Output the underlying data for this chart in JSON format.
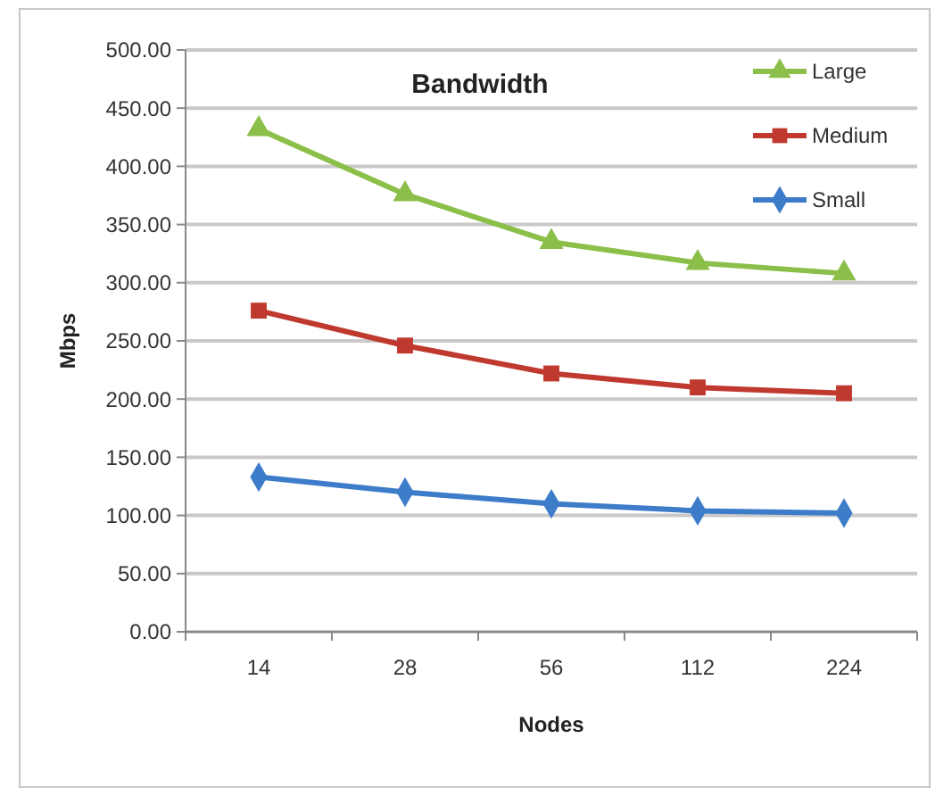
{
  "chart_data": {
    "type": "line",
    "title": "Bandwidth",
    "xlabel": "Nodes",
    "ylabel": "Mbps",
    "categories": [
      "14",
      "28",
      "56",
      "112",
      "224"
    ],
    "series": [
      {
        "name": "Large",
        "color": "#8cbf4a",
        "marker": "triangle",
        "values": [
          432,
          376,
          335,
          317,
          308
        ]
      },
      {
        "name": "Medium",
        "color": "#c0392f",
        "marker": "square",
        "values": [
          276,
          246,
          222,
          210,
          205
        ]
      },
      {
        "name": "Small",
        "color": "#3d7cc9",
        "marker": "diamond",
        "values": [
          133,
          120,
          110,
          104,
          102
        ]
      }
    ],
    "ylim": [
      0,
      500
    ],
    "yticks": [
      {
        "value": 0,
        "label": "0.00"
      },
      {
        "value": 50,
        "label": "50.00"
      },
      {
        "value": 100,
        "label": "100.00"
      },
      {
        "value": 150,
        "label": "150.00"
      },
      {
        "value": 200,
        "label": "200.00"
      },
      {
        "value": 250,
        "label": "250.00"
      },
      {
        "value": 300,
        "label": "300.00"
      },
      {
        "value": 350,
        "label": "350.00"
      },
      {
        "value": 400,
        "label": "400.00"
      },
      {
        "value": 450,
        "label": "450.00"
      },
      {
        "value": 500,
        "label": "500.00"
      }
    ],
    "grid": "y",
    "legend": "top right",
    "line_style": "solid"
  }
}
